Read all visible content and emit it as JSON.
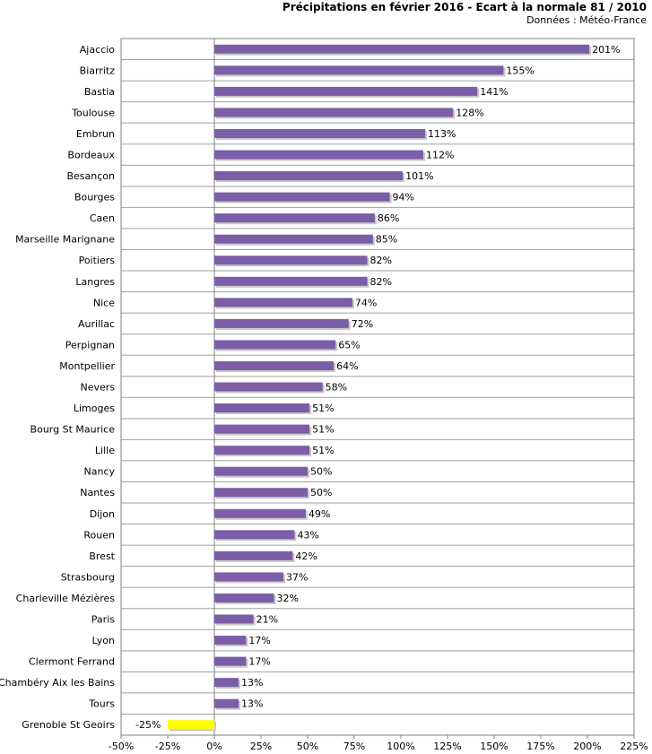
{
  "chart_data": {
    "type": "bar",
    "orientation": "horizontal",
    "title": "Précipitations en février 2016 - Ecart à la normale 81 / 2010",
    "subtitle": "Données : Météo-France",
    "xlim": [
      -50,
      225
    ],
    "ticks": [
      -50,
      -25,
      0,
      25,
      50,
      75,
      100,
      125,
      150,
      175,
      200,
      225
    ],
    "tick_suffix": "%",
    "grid": true,
    "categories": [
      "Ajaccio",
      "Biarritz",
      "Bastia",
      "Toulouse",
      "Embrun",
      "Bordeaux",
      "Besançon",
      "Bourges",
      "Caen",
      "Marseille Marignane",
      "Poitiers",
      "Langres",
      "Nice",
      "Aurillac",
      "Perpignan",
      "Montpellier",
      "Nevers",
      "Limoges",
      "Bourg St Maurice",
      "Lille",
      "Nancy",
      "Nantes",
      "Dijon",
      "Rouen",
      "Brest",
      "Strasbourg",
      "Charleville Mézières",
      "Paris",
      "Lyon",
      "Clermont Ferrand",
      "Chambéry Aix les Bains",
      "Tours",
      "Grenoble St Geoirs"
    ],
    "values": [
      201,
      155,
      141,
      128,
      113,
      112,
      101,
      94,
      86,
      85,
      82,
      82,
      74,
      72,
      65,
      64,
      58,
      51,
      51,
      51,
      50,
      50,
      49,
      43,
      42,
      37,
      32,
      21,
      17,
      17,
      13,
      13,
      -25
    ],
    "value_labels": [
      "201%",
      "155%",
      "141%",
      "128%",
      "113%",
      "112%",
      "101%",
      "94%",
      "86%",
      "85%",
      "82%",
      "82%",
      "74%",
      "72%",
      "65%",
      "64%",
      "58%",
      "51%",
      "51%",
      "51%",
      "50%",
      "50%",
      "49%",
      "43%",
      "42%",
      "37%",
      "32%",
      "21%",
      "17%",
      "17%",
      "13%",
      "13%",
      "-25%"
    ],
    "colors": {
      "positive": "#7b5ea7",
      "negative": "#ffff00",
      "shadow": "#c8c8c8",
      "grid": "#a0a0a0",
      "axis": "#808080"
    }
  }
}
